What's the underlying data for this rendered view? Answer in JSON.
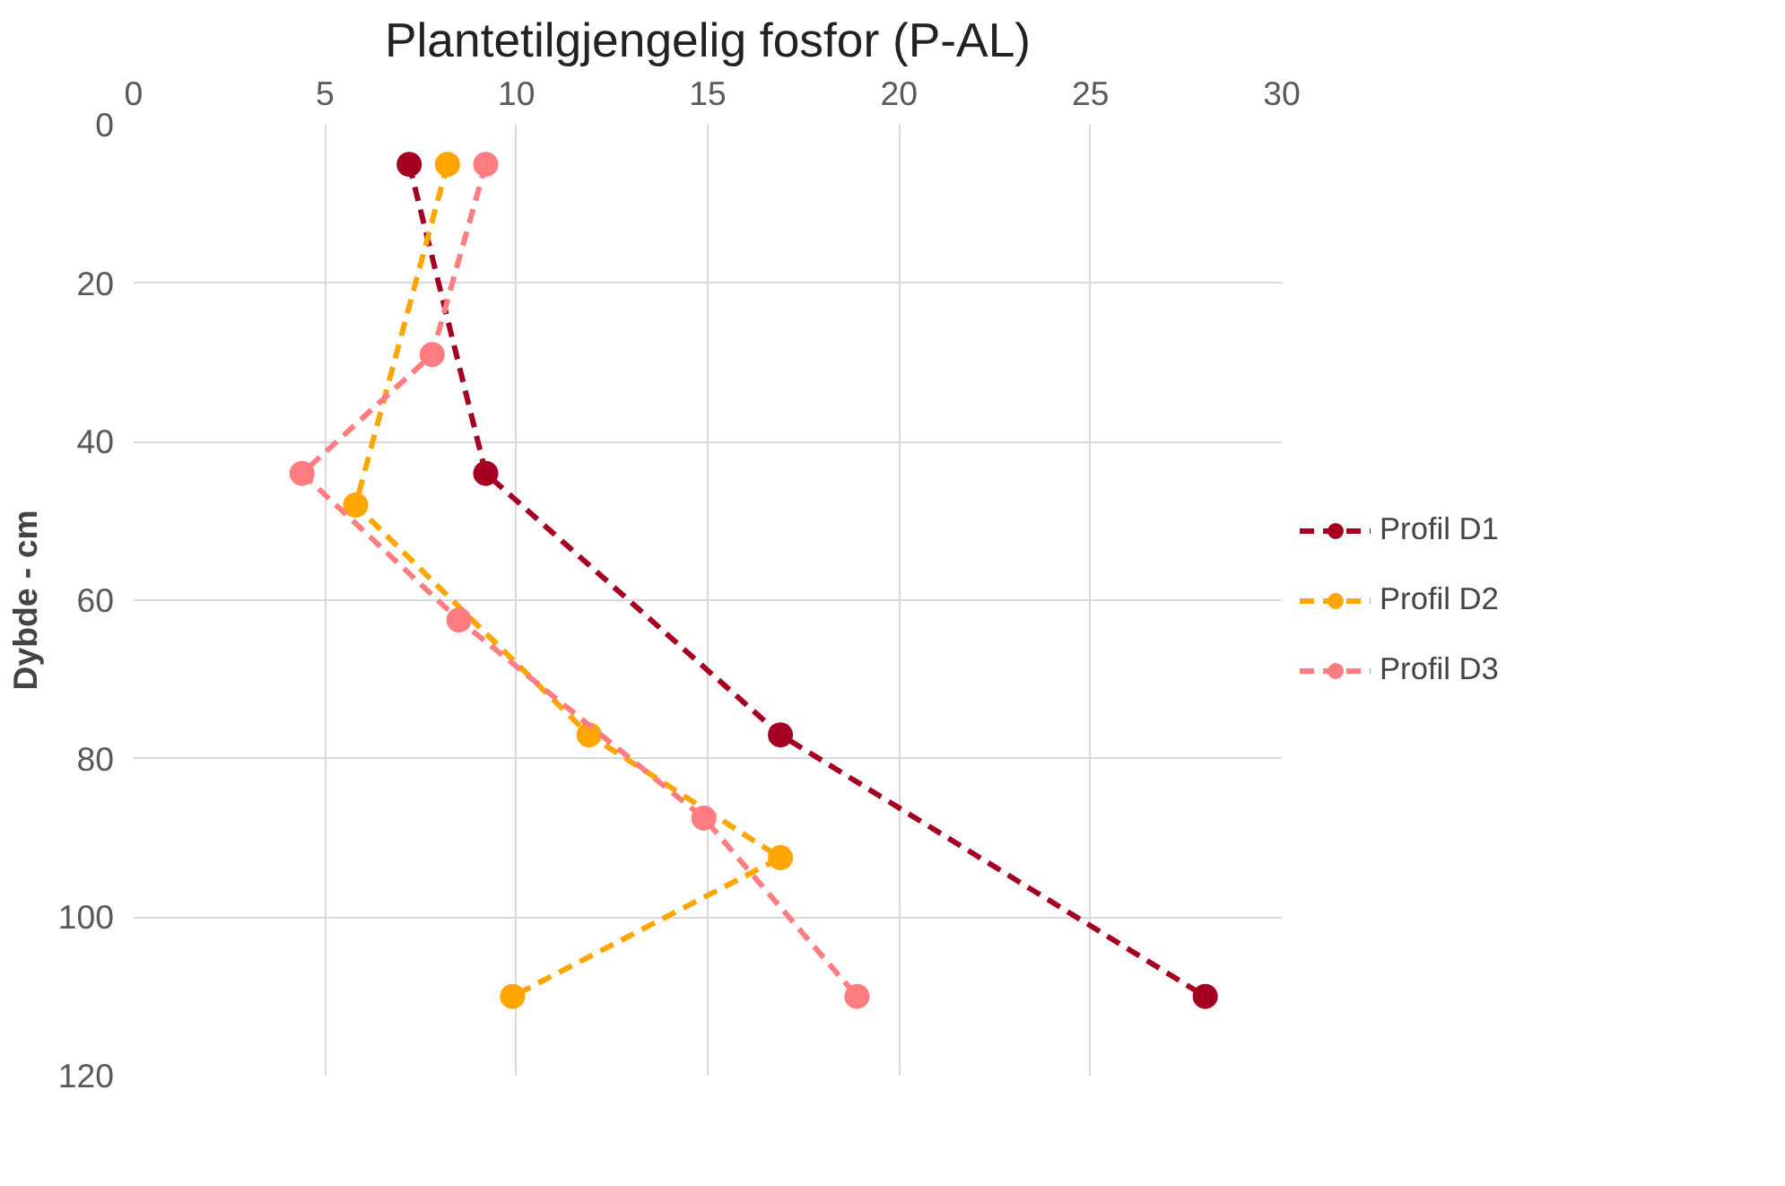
{
  "chart_data": {
    "type": "line",
    "title": "Plantetilgjengelig fosfor (P-AL)",
    "ylabel": "Dybde - cm",
    "xlim": [
      0,
      30
    ],
    "xticks": [
      0,
      5,
      10,
      15,
      20,
      25,
      30
    ],
    "ylim": [
      120,
      0
    ],
    "yticks": [
      0,
      20,
      40,
      60,
      80,
      100,
      120
    ],
    "grid": true,
    "legend": "right",
    "marker": "circle",
    "line_style": "dashed",
    "series": [
      {
        "name": "Profil D1",
        "color": "#a50021",
        "x": [
          7.2,
          9.2,
          16.9,
          28
        ],
        "values": [
          5,
          44,
          77,
          110
        ]
      },
      {
        "name": "Profil D2",
        "color": "#ffa500",
        "x": [
          8.2,
          5.8,
          11.9,
          16.9,
          9.9
        ],
        "values": [
          5,
          48,
          77,
          92.5,
          110
        ]
      },
      {
        "name": "Profil D3",
        "color": "#ff7c80",
        "x": [
          9.2,
          7.8,
          4.4,
          8.5,
          14.9,
          18.9
        ],
        "values": [
          5,
          29,
          44,
          62.5,
          87.5,
          110
        ]
      }
    ]
  }
}
